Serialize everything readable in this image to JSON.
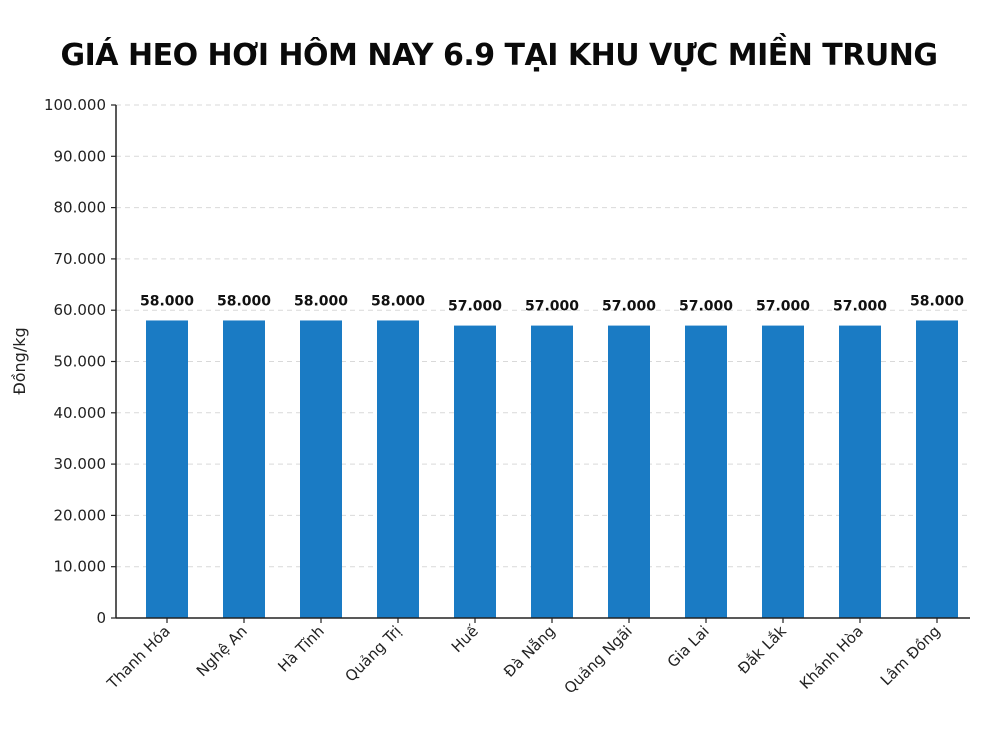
{
  "chart_data": {
    "type": "bar",
    "title": "GIÁ HEO HƠI HÔM NAY 6.9 TẠI KHU VỰC MIỀN TRUNG",
    "xlabel": "",
    "ylabel": "Đồng/kg",
    "categories": [
      "Thanh Hóa",
      "Nghệ An",
      "Hà Tĩnh",
      "Quảng Trị",
      "Huế",
      "Đà Nẵng",
      "Quảng Ngãi",
      "Gia Lai",
      "Đắk Lắk",
      "Khánh Hòa",
      "Lâm Đồng"
    ],
    "values": [
      58000,
      58000,
      58000,
      58000,
      57000,
      57000,
      57000,
      57000,
      57000,
      57000,
      58000
    ],
    "data_labels": [
      "58.000",
      "58.000",
      "58.000",
      "58.000",
      "57.000",
      "57.000",
      "57.000",
      "57.000",
      "57.000",
      "57.000",
      "58.000"
    ],
    "ylim": [
      0,
      100000
    ],
    "yticks": [
      0,
      10000,
      20000,
      30000,
      40000,
      50000,
      60000,
      70000,
      80000,
      90000,
      100000
    ],
    "ytick_labels": [
      "0",
      "10.000",
      "20.000",
      "30.000",
      "40.000",
      "50.000",
      "60.000",
      "70.000",
      "80.000",
      "90.000",
      "100.000"
    ],
    "grid": "horizontal dashed",
    "bar_color": "#1a7bc4"
  }
}
